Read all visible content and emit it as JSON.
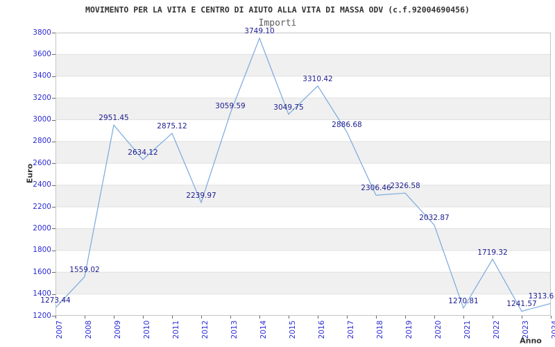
{
  "chart_data": {
    "type": "line",
    "title": "MOVIMENTO PER LA VITA E CENTRO DI AIUTO ALLA VITA DI MASSA ODV (c.f.92004690456)",
    "subtitle": "Importi",
    "xlabel": "Anno",
    "ylabel": "Euro",
    "categories": [
      "2007",
      "2008",
      "2009",
      "2010",
      "2011",
      "2012",
      "2013",
      "2014",
      "2015",
      "2016",
      "2017",
      "2018",
      "2019",
      "2020",
      "2021",
      "2022",
      "2023",
      "2024"
    ],
    "values": [
      1273.44,
      1559.02,
      2951.45,
      2634.12,
      2875.12,
      2239.97,
      3059.59,
      3749.1,
      3049.75,
      3310.42,
      2886.68,
      2306.46,
      2326.58,
      2032.87,
      1270.81,
      1719.32,
      1241.57,
      1313.6
    ],
    "point_labels": [
      "1273.44",
      "1559.02",
      "2951.45",
      "2634.12",
      "2875.12",
      "2239.97",
      "3059.59",
      "3749.10",
      "3049.75",
      "3310.42",
      "2886.68",
      "2306.46",
      "2326.58",
      "2032.87",
      "1270.81",
      "1719.32",
      "1241.57",
      "1313.6"
    ],
    "ylim": [
      1200,
      3800
    ],
    "ytick_step": 200,
    "grid": "horizontal-bands-alternating",
    "legend": "none",
    "markers": "none",
    "colors": {
      "line": "#78a9dc",
      "tick_labels": "#2b2bd2",
      "value_labels": "#1b1b8e",
      "band_gray": "#f0f0f0",
      "band_white": "#ffffff",
      "gridline": "#e0e0e0",
      "plot_border": "#c4c4c4",
      "tick_marks": "#666666",
      "title": "#333333",
      "subtitle": "#5a5a5a",
      "axis_titles": "#333333",
      "background": "#ffffff"
    }
  }
}
